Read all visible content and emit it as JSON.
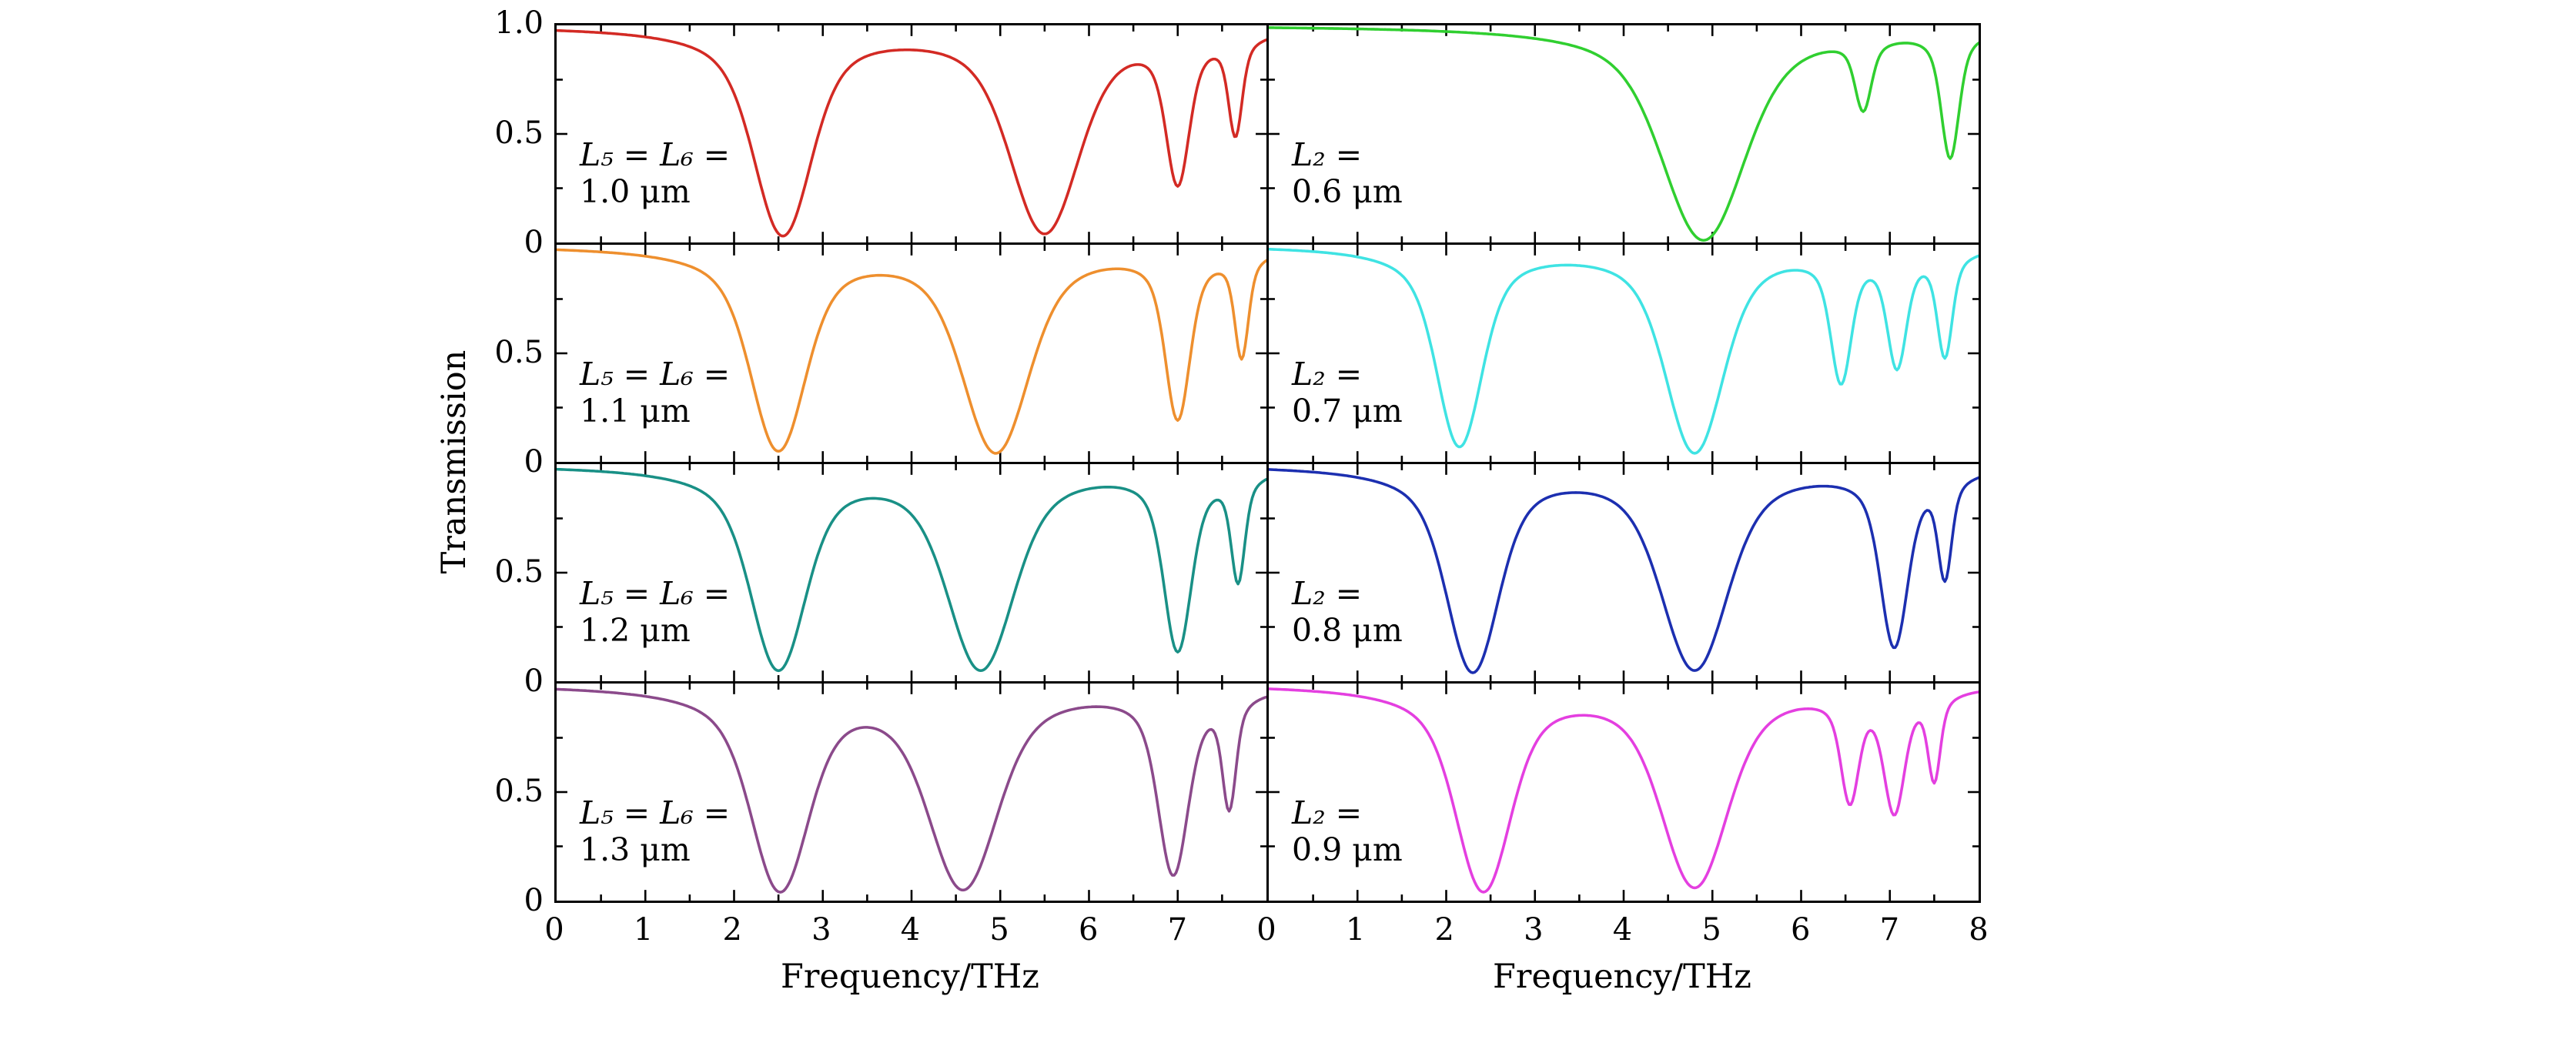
{
  "axes": {
    "x_label": "Frequency/THz",
    "y_label": "Transmission",
    "x_range": [
      0,
      8
    ],
    "y_range": [
      0,
      1
    ],
    "x_major_tick_step": 1,
    "x_minor_tick_step": 0.5,
    "y_major_ticks": [
      0,
      0.5,
      1.0
    ],
    "y_minor_ticks": [
      0.25,
      0.75
    ],
    "y_tick_labels": [
      "1.0",
      "0.5",
      "0"
    ],
    "left_column_x_tick_labels": [
      "0",
      "1",
      "2",
      "3",
      "4",
      "5",
      "6",
      "7"
    ],
    "right_column_x_tick_labels": [
      "0",
      "1",
      "2",
      "3",
      "4",
      "5",
      "6",
      "7",
      "8"
    ]
  },
  "chart_data": [
    {
      "type": "line",
      "panel": "row1-left",
      "legend": "L₅ = L₆ = 1.0 μm",
      "annotation_lines": [
        "L₅ = L₆ =",
        "1.0 μm"
      ],
      "color": "#d32a24",
      "x_range": [
        0,
        8
      ],
      "y_range": [
        0,
        1
      ],
      "resonance_dips": [
        {
          "center_THz": 2.55,
          "depth": 0.97,
          "width_THz": 0.42
        },
        {
          "center_THz": 5.5,
          "depth": 0.96,
          "width_THz": 0.5
        },
        {
          "center_THz": 7.0,
          "depth": 0.72,
          "width_THz": 0.17
        },
        {
          "center_THz": 7.65,
          "depth": 0.48,
          "width_THz": 0.1
        }
      ]
    },
    {
      "type": "line",
      "panel": "row1-right",
      "legend": "L₂ = 0.6 μm",
      "annotation_lines": [
        "L₂ =",
        "0.6 μm"
      ],
      "color": "#30cf30",
      "x_range": [
        0,
        8
      ],
      "y_range": [
        0,
        1
      ],
      "resonance_dips": [
        {
          "center_THz": 4.9,
          "depth": 0.99,
          "width_THz": 0.6
        },
        {
          "center_THz": 6.7,
          "depth": 0.35,
          "width_THz": 0.12
        },
        {
          "center_THz": 7.68,
          "depth": 0.6,
          "width_THz": 0.13
        }
      ]
    },
    {
      "type": "line",
      "panel": "row2-left",
      "legend": "L₅ = L₆ = 1.1 μm",
      "annotation_lines": [
        "L₅ = L₆ =",
        "1.1 μm"
      ],
      "color": "#ee8f2e",
      "x_range": [
        0,
        8
      ],
      "y_range": [
        0,
        1
      ],
      "resonance_dips": [
        {
          "center_THz": 2.5,
          "depth": 0.95,
          "width_THz": 0.4
        },
        {
          "center_THz": 4.95,
          "depth": 0.96,
          "width_THz": 0.48
        },
        {
          "center_THz": 7.0,
          "depth": 0.8,
          "width_THz": 0.18
        },
        {
          "center_THz": 7.72,
          "depth": 0.5,
          "width_THz": 0.1
        }
      ]
    },
    {
      "type": "line",
      "panel": "row2-right",
      "legend": "L₂ = 0.7 μm",
      "annotation_lines": [
        "L₂ =",
        "0.7 μm"
      ],
      "color": "#3fe3e3",
      "x_range": [
        0,
        8
      ],
      "y_range": [
        0,
        1
      ],
      "resonance_dips": [
        {
          "center_THz": 2.15,
          "depth": 0.93,
          "width_THz": 0.33
        },
        {
          "center_THz": 4.8,
          "depth": 0.96,
          "width_THz": 0.42
        },
        {
          "center_THz": 6.45,
          "depth": 0.62,
          "width_THz": 0.15
        },
        {
          "center_THz": 7.08,
          "depth": 0.55,
          "width_THz": 0.14
        },
        {
          "center_THz": 7.62,
          "depth": 0.5,
          "width_THz": 0.11
        }
      ]
    },
    {
      "type": "line",
      "panel": "row3-left",
      "legend": "L₅ = L₆ = 1.2 μm",
      "annotation_lines": [
        "L₅ = L₆ =",
        "1.2 μm"
      ],
      "color": "#199086",
      "x_range": [
        0,
        8
      ],
      "y_range": [
        0,
        1
      ],
      "resonance_dips": [
        {
          "center_THz": 2.5,
          "depth": 0.95,
          "width_THz": 0.4
        },
        {
          "center_THz": 4.78,
          "depth": 0.95,
          "width_THz": 0.48
        },
        {
          "center_THz": 7.0,
          "depth": 0.86,
          "width_THz": 0.2
        },
        {
          "center_THz": 7.68,
          "depth": 0.52,
          "width_THz": 0.1
        }
      ]
    },
    {
      "type": "line",
      "panel": "row3-right",
      "legend": "L₂ = 0.8 μm",
      "annotation_lines": [
        "L₂ =",
        "0.8 μm"
      ],
      "color": "#1c2fb0",
      "x_range": [
        0,
        8
      ],
      "y_range": [
        0,
        1
      ],
      "resonance_dips": [
        {
          "center_THz": 2.3,
          "depth": 0.96,
          "width_THz": 0.38
        },
        {
          "center_THz": 4.8,
          "depth": 0.95,
          "width_THz": 0.48
        },
        {
          "center_THz": 7.05,
          "depth": 0.84,
          "width_THz": 0.2
        },
        {
          "center_THz": 7.62,
          "depth": 0.5,
          "width_THz": 0.1
        }
      ]
    },
    {
      "type": "line",
      "panel": "row4-left",
      "legend": "L₅ = L₆ = 1.3 μm",
      "annotation_lines": [
        "L₅ = L₆ =",
        "1.3 μm"
      ],
      "color": "#8b4a8b",
      "x_range": [
        0,
        8
      ],
      "y_range": [
        0,
        1
      ],
      "resonance_dips": [
        {
          "center_THz": 2.52,
          "depth": 0.96,
          "width_THz": 0.42
        },
        {
          "center_THz": 4.58,
          "depth": 0.95,
          "width_THz": 0.5
        },
        {
          "center_THz": 6.95,
          "depth": 0.88,
          "width_THz": 0.22
        },
        {
          "center_THz": 7.58,
          "depth": 0.55,
          "width_THz": 0.1
        }
      ]
    },
    {
      "type": "line",
      "panel": "row4-right",
      "legend": "L₂ = 0.9 μm",
      "annotation_lines": [
        "L₂ =",
        "0.9 μm"
      ],
      "color": "#e43fe0",
      "x_range": [
        0,
        8
      ],
      "y_range": [
        0,
        1
      ],
      "resonance_dips": [
        {
          "center_THz": 2.42,
          "depth": 0.96,
          "width_THz": 0.4
        },
        {
          "center_THz": 4.8,
          "depth": 0.94,
          "width_THz": 0.48
        },
        {
          "center_THz": 6.55,
          "depth": 0.52,
          "width_THz": 0.13
        },
        {
          "center_THz": 7.05,
          "depth": 0.58,
          "width_THz": 0.15
        },
        {
          "center_THz": 7.5,
          "depth": 0.42,
          "width_THz": 0.09
        }
      ]
    }
  ]
}
